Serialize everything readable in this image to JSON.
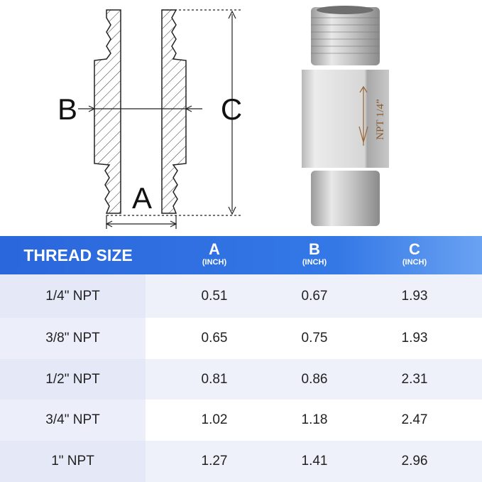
{
  "diagram": {
    "labels": {
      "a": "A",
      "b": "B",
      "c": "C"
    },
    "engraving": "NPT 1/4”"
  },
  "table": {
    "header": [
      {
        "title": "THREAD SIZE"
      },
      {
        "title": "A",
        "unit": "(INCH)"
      },
      {
        "title": "B",
        "unit": "(INCH)"
      },
      {
        "title": "C",
        "unit": "(INCH)"
      }
    ],
    "rows": [
      [
        "1/4\" NPT",
        "0.51",
        "0.67",
        "1.93"
      ],
      [
        "3/8\" NPT",
        "0.65",
        "0.75",
        "1.93"
      ],
      [
        "1/2\" NPT",
        "0.81",
        "0.86",
        "2.31"
      ],
      [
        "3/4\" NPT",
        "1.02",
        "1.18",
        "2.47"
      ],
      [
        "1\" NPT",
        "1.27",
        "1.41",
        "2.96"
      ]
    ]
  }
}
